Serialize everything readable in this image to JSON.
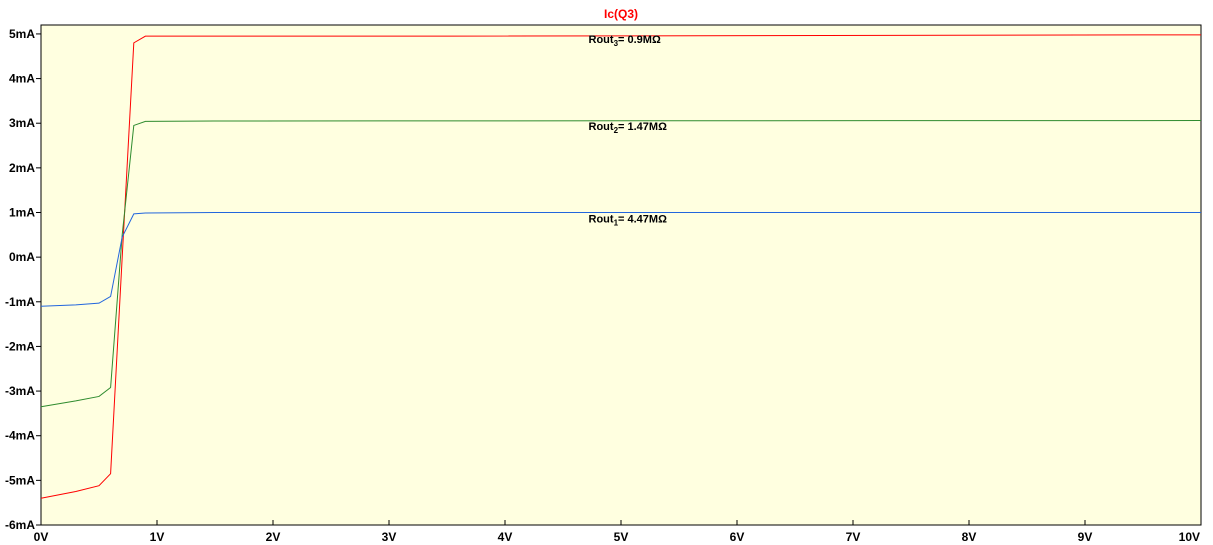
{
  "chart_data": {
    "type": "line",
    "title": "Ic(Q3)",
    "title_color": "#ff0000",
    "background_color": "#ffffe0",
    "grid": false,
    "xlim": [
      0,
      10
    ],
    "ylim": [
      -6,
      5.2
    ],
    "x_ticks": [
      0,
      1,
      2,
      3,
      4,
      5,
      6,
      7,
      8,
      9,
      10
    ],
    "x_tick_labels": [
      "0V",
      "1V",
      "2V",
      "3V",
      "4V",
      "5V",
      "6V",
      "7V",
      "8V",
      "9V",
      "10V"
    ],
    "y_ticks": [
      5,
      4,
      3,
      2,
      1,
      0,
      -1,
      -2,
      -3,
      -4,
      -5,
      -6
    ],
    "y_tick_labels": [
      "5mA",
      "4mA",
      "3mA",
      "2mA",
      "1mA",
      "0mA",
      "-1mA",
      "-2mA",
      "-3mA",
      "-4mA",
      "-5mA",
      "-6mA"
    ],
    "series": [
      {
        "color": "#ff0000",
        "x": [
          0,
          0.3,
          0.5,
          0.6,
          0.7,
          0.8,
          0.9,
          1.5,
          3.5,
          10
        ],
        "y": [
          -5.4,
          -5.25,
          -5.12,
          -4.85,
          0,
          4.8,
          4.95,
          4.95,
          4.95,
          4.98
        ]
      },
      {
        "color": "#2e8b2e",
        "x": [
          0,
          0.3,
          0.5,
          0.6,
          0.7,
          0.8,
          0.9,
          1.5,
          10
        ],
        "y": [
          -3.35,
          -3.22,
          -3.12,
          -2.92,
          0.5,
          2.95,
          3.04,
          3.05,
          3.06
        ]
      },
      {
        "color": "#2266dd",
        "x": [
          0,
          0.3,
          0.5,
          0.6,
          0.7,
          0.8,
          0.9,
          1.5,
          10
        ],
        "y": [
          -1.1,
          -1.07,
          -1.03,
          -0.88,
          0.45,
          0.97,
          0.99,
          1.0,
          1.0
        ]
      }
    ],
    "annotations": [
      {
        "text": "Rout",
        "sub": "3",
        "suffix": "= 0.9MΩ",
        "x": 4.72,
        "y": 4.8
      },
      {
        "text": "Rout",
        "sub": "2",
        "suffix": "= 1.47MΩ",
        "x": 4.72,
        "y": 2.85
      },
      {
        "text": "Rout",
        "sub": "1",
        "suffix": "= 4.47MΩ",
        "x": 4.72,
        "y": 0.78
      }
    ]
  }
}
